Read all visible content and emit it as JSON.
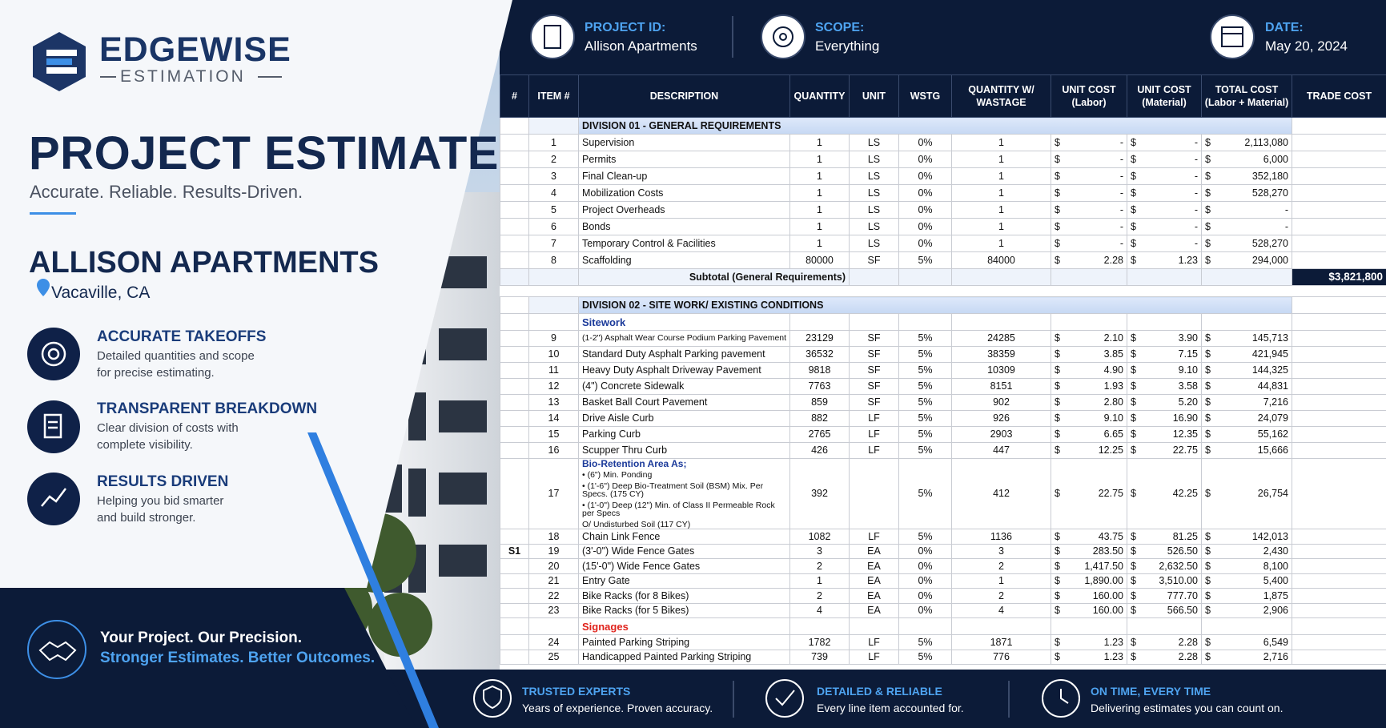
{
  "brand": {
    "name": "EDGEWISE",
    "tagline": "ESTIMATION"
  },
  "hero": {
    "title": "PROJECT ESTIMATE",
    "subtitle": "Accurate. Reliable. Results-Driven.",
    "project": "ALLISON APARTMENTS",
    "location": "Vacaville, CA"
  },
  "features": [
    {
      "title": "ACCURATE TAKEOFFS",
      "text": [
        "Detailed quantities and scope",
        "for precise estimating."
      ]
    },
    {
      "title": "TRANSPARENT BREAKDOWN",
      "text": [
        "Clear division of costs with",
        "complete visibility."
      ]
    },
    {
      "title": "RESULTS DRIVEN",
      "text": [
        "Helping you bid smarter",
        "and build stronger."
      ]
    }
  ],
  "promise": {
    "line1": "Your Project. Our Precision.",
    "line2": "Stronger Estimates. Better Outcomes."
  },
  "header": [
    {
      "label": "PROJECT ID:",
      "value": "Allison Apartments"
    },
    {
      "label": "SCOPE:",
      "value": "Everything"
    },
    {
      "label": "DATE:",
      "value": "May 20, 2024"
    }
  ],
  "table": {
    "currency": "$",
    "columns": [
      [
        "#"
      ],
      [
        "ITEM #"
      ],
      [
        "DESCRIPTION"
      ],
      [
        "QUANTITY"
      ],
      [
        "UNIT"
      ],
      [
        "WSTG"
      ],
      [
        "QUANTITY W/",
        "WASTAGE"
      ],
      [
        "UNIT COST",
        "(Labor)"
      ],
      [
        "UNIT COST",
        "(Material)"
      ],
      [
        "TOTAL COST",
        "(Labor + Material)"
      ],
      [
        "TRADE COST"
      ]
    ],
    "rows": [
      {
        "type": "division",
        "text": "DIVISION 01 - GENERAL REQUIREMENTS"
      },
      {
        "type": "item",
        "cells": [
          "1",
          "Supervision",
          "1",
          "LS",
          "0%",
          "1",
          "-",
          "-",
          "2,113,080"
        ]
      },
      {
        "type": "item",
        "cells": [
          "2",
          "Permits",
          "1",
          "LS",
          "0%",
          "1",
          "-",
          "-",
          "6,000"
        ]
      },
      {
        "type": "item",
        "cells": [
          "3",
          "Final Clean-up",
          "1",
          "LS",
          "0%",
          "1",
          "-",
          "-",
          "352,180"
        ]
      },
      {
        "type": "item",
        "cells": [
          "4",
          "Mobilization Costs",
          "1",
          "LS",
          "0%",
          "1",
          "-",
          "-",
          "528,270"
        ]
      },
      {
        "type": "item",
        "cells": [
          "5",
          "Project Overheads",
          "1",
          "LS",
          "0%",
          "1",
          "-",
          "-",
          "-"
        ]
      },
      {
        "type": "item",
        "cells": [
          "6",
          "Bonds",
          "1",
          "LS",
          "0%",
          "1",
          "-",
          "-",
          "-"
        ]
      },
      {
        "type": "item",
        "cells": [
          "7",
          "Temporary Control & Facilities",
          "1",
          "LS",
          "0%",
          "1",
          "-",
          "-",
          "528,270"
        ]
      },
      {
        "type": "item",
        "cells": [
          "8",
          "Scaffolding",
          "80000",
          "SF",
          "5%",
          "84000",
          "2.28",
          "1.23",
          "294,000"
        ]
      },
      {
        "type": "subtotal",
        "text": "Subtotal (General Requirements)",
        "trade": "$3,821,800"
      },
      {
        "type": "division",
        "text": "DIVISION 02 - SITE WORK/ EXISTING CONDITIONS"
      },
      {
        "type": "sub",
        "text": "Sitework",
        "color": "#1b3a9a"
      },
      {
        "type": "item",
        "cells": [
          "9",
          "(1-2\") Asphalt Wear Course Podium Parking Pavement",
          "23129",
          "SF",
          "5%",
          "24285",
          "2.10",
          "3.90",
          "145,713"
        ]
      },
      {
        "type": "item",
        "cells": [
          "10",
          "Standard Duty Asphalt Parking pavement",
          "36532",
          "SF",
          "5%",
          "38359",
          "3.85",
          "7.15",
          "421,945"
        ]
      },
      {
        "type": "item",
        "cells": [
          "11",
          "Heavy Duty Asphalt Driveway Pavement",
          "9818",
          "SF",
          "5%",
          "10309",
          "4.90",
          "9.10",
          "144,325"
        ]
      },
      {
        "type": "item",
        "cells": [
          "12",
          "(4\") Concrete Sidewalk",
          "7763",
          "SF",
          "5%",
          "8151",
          "1.93",
          "3.58",
          "44,831"
        ]
      },
      {
        "type": "item",
        "cells": [
          "13",
          "Basket Ball Court Pavement",
          "859",
          "SF",
          "5%",
          "902",
          "2.80",
          "5.20",
          "7,216"
        ]
      },
      {
        "type": "item",
        "cells": [
          "14",
          "Drive Aisle Curb",
          "882",
          "LF",
          "5%",
          "926",
          "9.10",
          "16.90",
          "24,079"
        ]
      },
      {
        "type": "item",
        "cells": [
          "15",
          "Parking Curb",
          "2765",
          "LF",
          "5%",
          "2903",
          "6.65",
          "12.35",
          "55,162"
        ]
      },
      {
        "type": "item",
        "cells": [
          "16",
          "Scupper Thru Curb",
          "426",
          "LF",
          "5%",
          "447",
          "12.25",
          "22.75",
          "15,666"
        ]
      },
      {
        "type": "item",
        "cells": [
          "17",
          [
            "Bio-Retention Area As;",
            "• (6\") Min. Ponding",
            "• (1'-6\") Deep Bio-Treatment Soil (BSM) Mix. Per Specs. (175 CY)",
            "• (1'-0\") Deep (12\") Min. of Class II Permeable Rock per Specs",
            "O/ Undisturbed Soil (117 CY)"
          ],
          "392",
          null,
          "5%",
          "412",
          "22.75",
          "42.25",
          "26,754"
        ]
      },
      {
        "type": "item",
        "cells": [
          "18",
          "Chain Link Fence",
          "1082",
          "LF",
          "5%",
          "1136",
          "43.75",
          "81.25",
          "142,013"
        ]
      },
      {
        "type": "item",
        "section": "S1",
        "cells": [
          "19",
          "(3'-0\") Wide Fence Gates",
          "3",
          "EA",
          "0%",
          "3",
          "283.50",
          "526.50",
          "2,430"
        ]
      },
      {
        "type": "item",
        "cells": [
          "20",
          "(15'-0\") Wide Fence Gates",
          "2",
          "EA",
          "0%",
          "2",
          "1,417.50",
          "2,632.50",
          "8,100"
        ]
      },
      {
        "type": "item",
        "cells": [
          "21",
          "Entry Gate",
          "1",
          "EA",
          "0%",
          "1",
          "1,890.00",
          "3,510.00",
          "5,400"
        ]
      },
      {
        "type": "item",
        "cells": [
          "22",
          "Bike Racks (for 8 Bikes)",
          "2",
          "EA",
          "0%",
          "2",
          "160.00",
          "777.70",
          "1,875"
        ]
      },
      {
        "type": "item",
        "cells": [
          "23",
          "Bike Racks (for 5 Bikes)",
          "4",
          "EA",
          "0%",
          "4",
          "160.00",
          "566.50",
          "2,906"
        ]
      },
      {
        "type": "sub",
        "text": "Signages",
        "color": "#e0231c"
      },
      {
        "type": "item",
        "cells": [
          "24",
          "Painted Parking Striping",
          "1782",
          "LF",
          "5%",
          "1871",
          "1.23",
          "2.28",
          "6,549"
        ]
      },
      {
        "type": "item",
        "cells": [
          "25",
          "Handicapped Painted Parking Striping",
          "739",
          "LF",
          "5%",
          "776",
          "1.23",
          "2.28",
          "2,716"
        ]
      }
    ]
  },
  "footer": [
    {
      "title": "TRUSTED EXPERTS",
      "text": "Years of experience. Proven accuracy."
    },
    {
      "title": "DETAILED & RELIABLE",
      "text": "Every line item accounted for."
    },
    {
      "title": "ON TIME, EVERY TIME",
      "text": "Delivering estimates you can count on."
    }
  ]
}
